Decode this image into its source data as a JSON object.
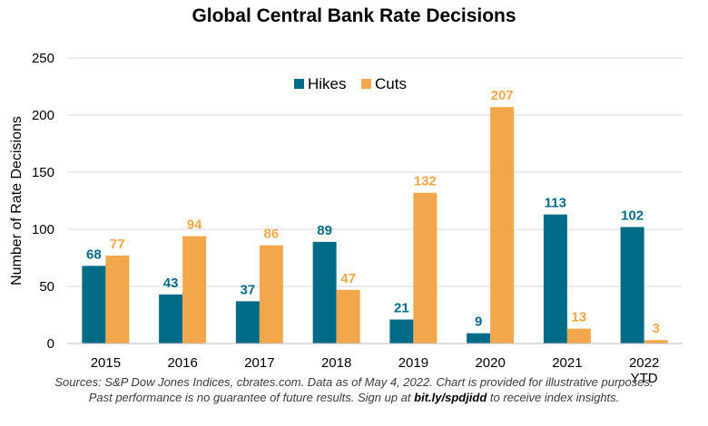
{
  "colors": {
    "hikes": "#006B87",
    "cuts": "#F2A74A",
    "grid": "#d9d9d9",
    "axis": "#bfbfbf"
  },
  "chart_data": {
    "type": "bar",
    "title": "Global Central Bank Rate Decisions",
    "ylabel": "Number of Rate Decisions",
    "xlabel": "",
    "ylim": [
      0,
      250
    ],
    "yticks": [
      0,
      50,
      100,
      150,
      200,
      250
    ],
    "grid": true,
    "legend_position": "top-center",
    "categories": [
      "2015",
      "2016",
      "2017",
      "2018",
      "2019",
      "2020",
      "2021",
      "2022 YTD"
    ],
    "category_lines": [
      [
        "2015"
      ],
      [
        "2016"
      ],
      [
        "2017"
      ],
      [
        "2018"
      ],
      [
        "2019"
      ],
      [
        "2020"
      ],
      [
        "2021"
      ],
      [
        "2022",
        "YTD"
      ]
    ],
    "series": [
      {
        "name": "Hikes",
        "values": [
          68,
          43,
          37,
          89,
          21,
          9,
          113,
          102
        ]
      },
      {
        "name": "Cuts",
        "values": [
          77,
          94,
          86,
          47,
          132,
          207,
          13,
          3
        ]
      }
    ]
  },
  "footnote": {
    "line1": "Sources: S&P Dow Jones Indices, cbrates.com. Data as of May 4, 2022. Chart is provided for illustrative purposes.",
    "line2_before": "Past performance is no guarantee of future results. Sign up at ",
    "line2_link": "bit.ly/spdjidd",
    "line2_after": " to receive index insights."
  }
}
